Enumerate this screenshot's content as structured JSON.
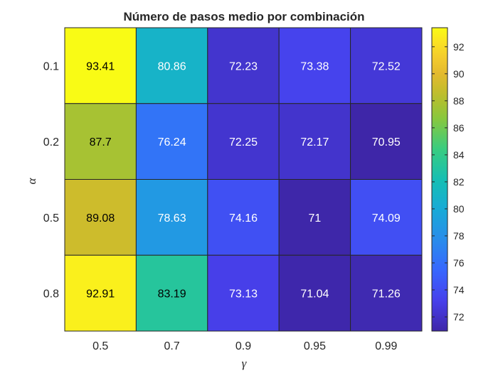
{
  "chart_data": {
    "type": "heatmap",
    "title": "Número de pasos medio por combinación",
    "xlabel": "γ",
    "ylabel": "α",
    "x_categories": [
      "0.5",
      "0.7",
      "0.9",
      "0.95",
      "0.99"
    ],
    "y_categories": [
      "0.1",
      "0.2",
      "0.5",
      "0.8"
    ],
    "values": [
      [
        93.41,
        80.86,
        72.23,
        73.38,
        72.52
      ],
      [
        87.7,
        76.24,
        72.25,
        72.17,
        70.95
      ],
      [
        89.08,
        78.63,
        74.16,
        71,
        74.09
      ],
      [
        92.91,
        83.19,
        73.13,
        71.04,
        71.26
      ]
    ],
    "value_labels": [
      [
        "93.41",
        "80.86",
        "72.23",
        "73.38",
        "72.52"
      ],
      [
        "87.7",
        "76.24",
        "72.25",
        "72.17",
        "70.95"
      ],
      [
        "89.08",
        "78.63",
        "74.16",
        "71",
        "74.09"
      ],
      [
        "92.91",
        "83.19",
        "73.13",
        "71.04",
        "71.26"
      ]
    ],
    "colormap": "parula",
    "color_range": [
      70.95,
      93.41
    ],
    "colorbar": {
      "position": "right",
      "ticks": [
        "72",
        "74",
        "76",
        "78",
        "80",
        "82",
        "84",
        "86",
        "88",
        "90",
        "92"
      ]
    },
    "grid": true,
    "grid_color": "#262626",
    "text_color_dark": "#000000",
    "text_color_light": "#ffffff"
  }
}
